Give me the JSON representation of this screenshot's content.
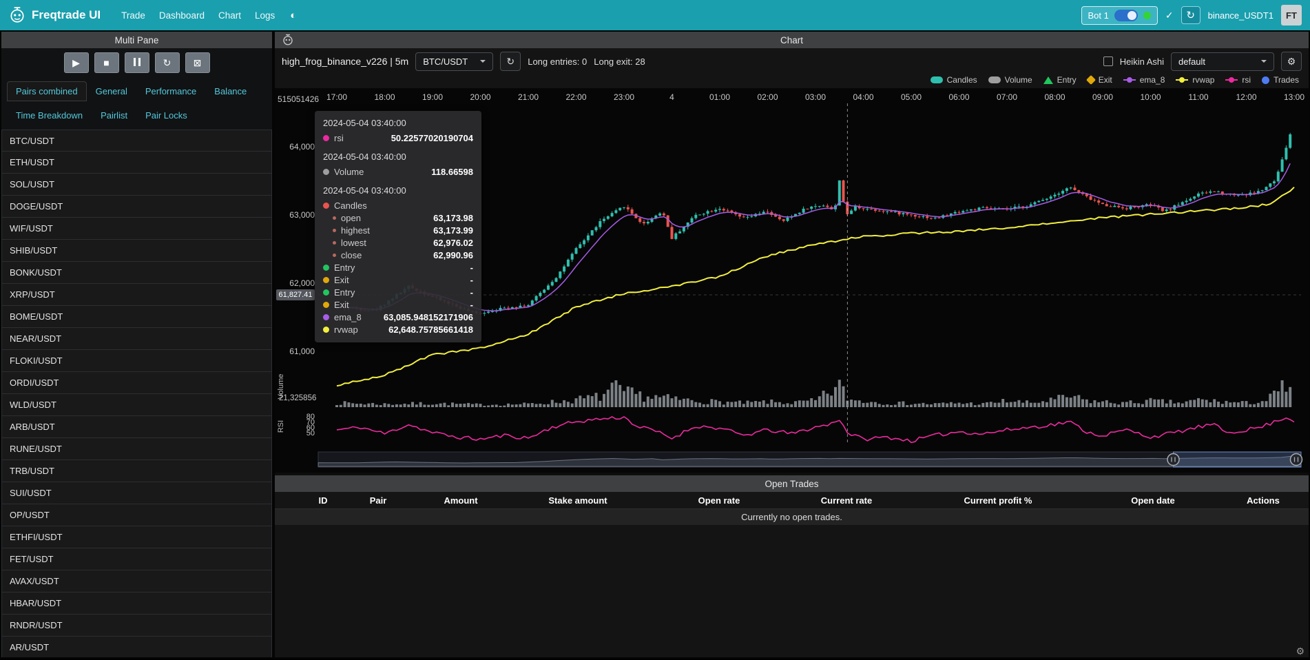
{
  "navbar": {
    "brand": "Freqtrade UI",
    "items": [
      "Trade",
      "Dashboard",
      "Chart",
      "Logs"
    ],
    "bot": {
      "name": "Bot 1",
      "online_color": "#35d435"
    },
    "exchange_label": "binance_USDT1",
    "avatar": "FT"
  },
  "sidebar": {
    "title": "Multi Pane",
    "controls": [
      "play",
      "stop",
      "pause",
      "reload",
      "cancel"
    ],
    "tabs_row1": [
      "Pairs combined",
      "General",
      "Performance",
      "Balance"
    ],
    "tabs_row2": [
      "Time Breakdown",
      "Pairlist",
      "Pair Locks"
    ],
    "active_tab": "Pairs combined",
    "pairs": [
      "BTC/USDT",
      "ETH/USDT",
      "SOL/USDT",
      "DOGE/USDT",
      "WIF/USDT",
      "SHIB/USDT",
      "BONK/USDT",
      "XRP/USDT",
      "BOME/USDT",
      "NEAR/USDT",
      "FLOKI/USDT",
      "ORDI/USDT",
      "WLD/USDT",
      "ARB/USDT",
      "RUNE/USDT",
      "TRB/USDT",
      "SUI/USDT",
      "OP/USDT",
      "ETHFI/USDT",
      "FET/USDT",
      "AVAX/USDT",
      "HBAR/USDT",
      "RNDR/USDT",
      "AR/USDT"
    ]
  },
  "chart": {
    "panel_title": "Chart",
    "strategy_label": "high_frog_binance_v226 | 5m",
    "pair_select": "BTC/USDT",
    "entries_label": "Long entries: 0",
    "exits_label": "Long exit: 28",
    "heikin_ashi_label": "Heikin Ashi",
    "plot_config_select": "default",
    "legend": [
      {
        "label": "Candles",
        "color": "#2fbfae",
        "shape": "pill"
      },
      {
        "label": "Volume",
        "color": "#9e9e9e",
        "shape": "pill"
      },
      {
        "label": "Entry",
        "color": "#22c55e",
        "shape": "triangle"
      },
      {
        "label": "Exit",
        "color": "#e0a80a",
        "shape": "diamond"
      },
      {
        "label": "ema_8",
        "color": "#a85ce8",
        "shape": "line"
      },
      {
        "label": "rvwap",
        "color": "#f2ef3d",
        "shape": "line"
      },
      {
        "label": "rsi",
        "color": "#ec2a9e",
        "shape": "line"
      },
      {
        "label": "Trades",
        "color": "#4f7bf3",
        "shape": "circle"
      }
    ],
    "x_ticks": [
      "17:00",
      "18:00",
      "19:00",
      "20:00",
      "21:00",
      "22:00",
      "23:00",
      "4",
      "01:00",
      "02:00",
      "03:00",
      "04:00",
      "05:00",
      "06:00",
      "07:00",
      "08:00",
      "09:00",
      "10:00",
      "11:00",
      "12:00",
      "13:00"
    ],
    "y_ticks": [
      {
        "label": "64,000",
        "value": 64000
      },
      {
        "label": "63,000",
        "value": 63000
      },
      {
        "label": "62,000",
        "value": 62000
      },
      {
        "label": "61,000",
        "value": 61000
      }
    ],
    "rsi_ticks": [
      {
        "label": "80",
        "value": 80
      },
      {
        "label": "70",
        "value": 70
      },
      {
        "label": "60",
        "value": 60
      },
      {
        "label": "50",
        "value": 50
      }
    ],
    "top_left_axis_label": "515051426",
    "volume_axis_label": "21,325856",
    "volume_axis_title": "Volume",
    "rsi_axis_title": "RSI",
    "axis_pointer_label": "61,827.41",
    "tooltip": {
      "sections": [
        {
          "time": "2024-05-04 03:40:00",
          "rows": [
            {
              "color": "#ec2a9e",
              "label": "rsi",
              "value": "50.22577020190704"
            }
          ]
        },
        {
          "time": "2024-05-04 03:40:00",
          "rows": [
            {
              "color": "#9e9e9e",
              "label": "Volume",
              "value": "118.66598"
            }
          ]
        },
        {
          "time": "2024-05-04 03:40:00",
          "rows": [
            {
              "color": "#e8544e",
              "label": "Candles",
              "value": ""
            },
            {
              "color": "#b8695f",
              "label": "open",
              "value": "63,173.98",
              "sub": true
            },
            {
              "color": "#b8695f",
              "label": "highest",
              "value": "63,173.99",
              "sub": true
            },
            {
              "color": "#b8695f",
              "label": "lowest",
              "value": "62,976.02",
              "sub": true
            },
            {
              "color": "#b8695f",
              "label": "close",
              "value": "62,990.96",
              "sub": true
            },
            {
              "color": "#22c55e",
              "label": "Entry",
              "value": "-"
            },
            {
              "color": "#e0a80a",
              "label": "Exit",
              "value": "-"
            },
            {
              "color": "#22c55e",
              "label": "Entry",
              "value": "-"
            },
            {
              "color": "#e0a80a",
              "label": "Exit",
              "value": "-"
            },
            {
              "color": "#a85ce8",
              "label": "ema_8",
              "value": "63,085.948152171906"
            },
            {
              "color": "#f2ef3d",
              "label": "rvwap",
              "value": "62,648.75785661418"
            }
          ]
        }
      ]
    }
  },
  "open_trades": {
    "title": "Open Trades",
    "headers": [
      "ID",
      "Pair",
      "Amount",
      "Stake amount",
      "Open rate",
      "Current rate",
      "Current profit %",
      "Open date",
      "Actions"
    ],
    "empty_message": "Currently no open trades."
  },
  "chart_data": {
    "type": "candlestick",
    "pair": "BTC/USDT",
    "timeframe": "5m",
    "x_range_hours": 20,
    "candle_up_color": "#2fbfae",
    "candle_down_color": "#e8544e",
    "ema_color": "#a85ce8",
    "rvwap_color": "#f2ef3d",
    "rsi_color": "#ec2a9e",
    "volume_color": "#9aa0a6",
    "crosshair_t": 10.667,
    "datazoom_window": [
      0.87,
      1.0
    ],
    "price_keypoints": [
      [
        0,
        61650
      ],
      [
        0.8,
        61600
      ],
      [
        1.5,
        61950
      ],
      [
        2.0,
        61800
      ],
      [
        2.9,
        61550
      ],
      [
        3.6,
        61650
      ],
      [
        4.0,
        61680
      ],
      [
        4.6,
        62100
      ],
      [
        5.0,
        62500
      ],
      [
        5.5,
        62900
      ],
      [
        6.0,
        63130
      ],
      [
        6.4,
        62860
      ],
      [
        6.8,
        63060
      ],
      [
        7.0,
        62660
      ],
      [
        7.5,
        63000
      ],
      [
        8.0,
        63100
      ],
      [
        8.5,
        62950
      ],
      [
        9.0,
        63050
      ],
      [
        9.3,
        62900
      ],
      [
        9.8,
        63100
      ],
      [
        10.2,
        63150
      ],
      [
        10.4,
        63050
      ],
      [
        10.5,
        63520
      ],
      [
        10.62,
        63060
      ],
      [
        10.67,
        62990
      ],
      [
        10.8,
        63120
      ],
      [
        11.0,
        63100
      ],
      [
        12.0,
        63000
      ],
      [
        12.5,
        62950
      ],
      [
        13.0,
        63050
      ],
      [
        13.5,
        63100
      ],
      [
        14.0,
        63080
      ],
      [
        14.5,
        63150
      ],
      [
        15.0,
        63300
      ],
      [
        15.3,
        63410
      ],
      [
        15.7,
        63250
      ],
      [
        16.0,
        63150
      ],
      [
        16.5,
        63100
      ],
      [
        17.0,
        63150
      ],
      [
        17.3,
        63050
      ],
      [
        17.7,
        63200
      ],
      [
        18.0,
        63300
      ],
      [
        18.3,
        63350
      ],
      [
        18.7,
        63300
      ],
      [
        19.0,
        63300
      ],
      [
        19.3,
        63350
      ],
      [
        19.6,
        63500
      ],
      [
        19.75,
        63800
      ],
      [
        19.9,
        64150
      ],
      [
        20.0,
        64300
      ]
    ],
    "rvwap_keypoints": [
      [
        0,
        60500
      ],
      [
        1,
        60650
      ],
      [
        2,
        60950
      ],
      [
        3,
        61050
      ],
      [
        4,
        61250
      ],
      [
        5,
        61650
      ],
      [
        6,
        61850
      ],
      [
        7,
        61950
      ],
      [
        8,
        62100
      ],
      [
        9,
        62400
      ],
      [
        10,
        62570
      ],
      [
        10.67,
        62648
      ],
      [
        11,
        62680
      ],
      [
        12,
        62730
      ],
      [
        13,
        62760
      ],
      [
        14,
        62810
      ],
      [
        15,
        62880
      ],
      [
        16,
        62960
      ],
      [
        17,
        63010
      ],
      [
        18,
        63060
      ],
      [
        19,
        63110
      ],
      [
        19.5,
        63160
      ],
      [
        20,
        63400
      ]
    ],
    "rsi_keypoints": [
      [
        0,
        55
      ],
      [
        0.5,
        60
      ],
      [
        1,
        48
      ],
      [
        1.5,
        65
      ],
      [
        2,
        50
      ],
      [
        2.5,
        42
      ],
      [
        3,
        38
      ],
      [
        3.5,
        45
      ],
      [
        4,
        40
      ],
      [
        4.5,
        60
      ],
      [
        5,
        70
      ],
      [
        5.5,
        75
      ],
      [
        6,
        78
      ],
      [
        6.3,
        60
      ],
      [
        6.6,
        55
      ],
      [
        7,
        40
      ],
      [
        7.5,
        62
      ],
      [
        8,
        58
      ],
      [
        8.5,
        45
      ],
      [
        9,
        55
      ],
      [
        9.5,
        48
      ],
      [
        10,
        60
      ],
      [
        10.3,
        65
      ],
      [
        10.5,
        75
      ],
      [
        10.67,
        50
      ],
      [
        11,
        38
      ],
      [
        11.5,
        42
      ],
      [
        12,
        35
      ],
      [
        12.5,
        45
      ],
      [
        13,
        52
      ],
      [
        13.5,
        48
      ],
      [
        14,
        55
      ],
      [
        14.5,
        60
      ],
      [
        15,
        65
      ],
      [
        15.3,
        70
      ],
      [
        15.7,
        50
      ],
      [
        16,
        45
      ],
      [
        16.5,
        55
      ],
      [
        17,
        42
      ],
      [
        17.5,
        50
      ],
      [
        18,
        60
      ],
      [
        18.3,
        65
      ],
      [
        18.6,
        50
      ],
      [
        19,
        55
      ],
      [
        19.3,
        60
      ],
      [
        19.6,
        70
      ],
      [
        19.8,
        78
      ],
      [
        20,
        72
      ]
    ],
    "volume_profile": [
      [
        0,
        0.2
      ],
      [
        1,
        0.15
      ],
      [
        2,
        0.18
      ],
      [
        3,
        0.12
      ],
      [
        4,
        0.15
      ],
      [
        4.8,
        0.3
      ],
      [
        5.5,
        0.5
      ],
      [
        5.8,
        0.9
      ],
      [
        6,
        0.7
      ],
      [
        6.5,
        0.5
      ],
      [
        7,
        0.4
      ],
      [
        7.5,
        0.3
      ],
      [
        8,
        0.25
      ],
      [
        8.5,
        0.2
      ],
      [
        9,
        0.25
      ],
      [
        9.5,
        0.2
      ],
      [
        10,
        0.3
      ],
      [
        10.5,
        1.0
      ],
      [
        10.7,
        0.35
      ],
      [
        11,
        0.3
      ],
      [
        11.5,
        0.2
      ],
      [
        12,
        0.18
      ],
      [
        12.5,
        0.15
      ],
      [
        13,
        0.2
      ],
      [
        13.5,
        0.15
      ],
      [
        14,
        0.3
      ],
      [
        14.5,
        0.2
      ],
      [
        15,
        0.35
      ],
      [
        15.3,
        0.5
      ],
      [
        15.7,
        0.3
      ],
      [
        16,
        0.25
      ],
      [
        16.5,
        0.2
      ],
      [
        17,
        0.3
      ],
      [
        17.3,
        0.25
      ],
      [
        17.7,
        0.2
      ],
      [
        18,
        0.35
      ],
      [
        18.5,
        0.25
      ],
      [
        19,
        0.2
      ],
      [
        19.4,
        0.3
      ],
      [
        19.6,
        0.6
      ],
      [
        19.75,
        0.9
      ],
      [
        19.9,
        1.0
      ],
      [
        20,
        0.8
      ]
    ]
  }
}
